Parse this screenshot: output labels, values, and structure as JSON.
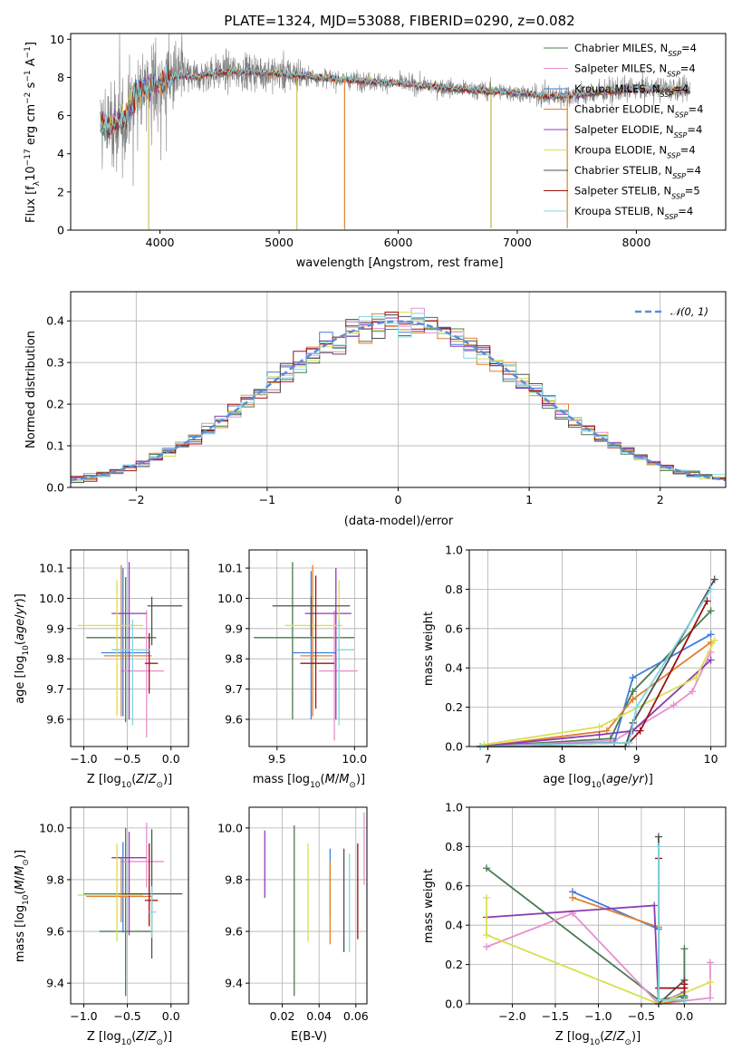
{
  "chart_data": [
    {
      "id": "spectrum",
      "type": "line",
      "title": "PLATE=1324, MJD=53088, FIBERID=0290, z=0.082",
      "xlabel": "wavelength [Angstrom, rest frame]",
      "ylabel": "Flux [f$_\\lambda$10$^{-17}$ erg cm$^{-2}$ s$^{-1}$ A$^{-1}$]",
      "xlim": [
        3250,
        8750
      ],
      "ylim": [
        0,
        10.3
      ],
      "xticks": [
        4000,
        5000,
        6000,
        7000,
        8000
      ],
      "yticks": [
        0,
        2,
        4,
        6,
        8,
        10
      ],
      "grid": false,
      "legend_position": "right",
      "series": [
        {
          "name": "Chabrier MILES, N$_{SSP}$=4",
          "color": "#4a7a50"
        },
        {
          "name": "Salpeter MILES, N$_{SSP}$=4",
          "color": "#e88fd0"
        },
        {
          "name": "Kroupa MILES, N$_{SSP}$=4",
          "color": "#3f7fd8"
        },
        {
          "name": "Chabrier ELODIE, N$_{SSP}$=4",
          "color": "#e08030"
        },
        {
          "name": "Salpeter ELODIE, N$_{SSP}$=4",
          "color": "#8c3cb4"
        },
        {
          "name": "Kroupa ELODIE, N$_{SSP}$=4",
          "color": "#d8e050"
        },
        {
          "name": "Chabrier STELIB, N$_{SSP}$=4",
          "color": "#505050"
        },
        {
          "name": "Salpeter STELIB, N$_{SSP}$=5",
          "color": "#a01010"
        },
        {
          "name": "Kroupa STELIB, N$_{SSP}$=4",
          "color": "#80d8e0"
        }
      ],
      "data_color": "#808080",
      "continuum": {
        "wavelength": [
          3500,
          3600,
          3700,
          3800,
          3900,
          4000,
          4100,
          4200,
          4300,
          4400,
          4600,
          4800,
          5000,
          5200,
          5500,
          6000,
          6500,
          7000,
          7300,
          7500,
          8000,
          8300,
          8450
        ],
        "flux": [
          5.5,
          5.4,
          5.8,
          7.2,
          7.5,
          7.6,
          8.0,
          8.1,
          8.0,
          8.2,
          8.3,
          8.3,
          8.2,
          8.1,
          7.9,
          7.7,
          7.4,
          7.2,
          7.0,
          7.1,
          7.4,
          7.4,
          7.3
        ]
      },
      "spikes": [
        {
          "wavelength": 3905,
          "flux": 0
        },
        {
          "wavelength": 5150,
          "flux": 0
        },
        {
          "wavelength": 5550,
          "flux": 0
        },
        {
          "wavelength": 6780,
          "flux": 0.3
        },
        {
          "wavelength": 7420,
          "flux": 0.5
        }
      ]
    },
    {
      "id": "residuals",
      "type": "line",
      "xlabel": "(data-model)/error",
      "ylabel": "Normed distribution",
      "xlim": [
        -2.5,
        2.5
      ],
      "ylim": [
        0,
        0.47
      ],
      "xticks": [
        -2,
        -1,
        0,
        1,
        2
      ],
      "yticks": [
        0.0,
        0.1,
        0.2,
        0.3,
        0.4
      ],
      "grid": true,
      "legend": [
        {
          "name": "$\\mathcal{N}(0,1)$",
          "color": "#5b8cd8",
          "style": "dashed"
        }
      ],
      "legend_position": "top-right",
      "bins": 50,
      "hist_range": [
        -2.5,
        2.5
      ]
    },
    {
      "id": "age-vs-Z",
      "type": "scatter",
      "xlabel": "Z [log$_{10}$(Z/Z$_\\odot$)]",
      "ylabel": "age  [log$_{10}$(age/yr)]",
      "xlim": [
        -1.15,
        0.2
      ],
      "ylim": [
        9.51,
        10.16
      ],
      "xticks": [
        -1.0,
        -0.5,
        0.0
      ],
      "yticks": [
        9.6,
        9.7,
        9.8,
        9.9,
        10.0,
        10.1
      ],
      "grid": true,
      "points": [
        {
          "color": "#4a7a50",
          "x": -0.52,
          "xerr": [
            0.45,
            0.35
          ],
          "y": 9.87,
          "yerr": [
            0.28,
            0.2
          ]
        },
        {
          "color": "#e88fd0",
          "x": -0.28,
          "xerr": [
            0.3,
            0.2
          ],
          "y": 9.76,
          "yerr": [
            0.22,
            0.2
          ]
        },
        {
          "color": "#3f7fd8",
          "x": -0.55,
          "xerr": [
            0.25,
            0.3
          ],
          "y": 9.82,
          "yerr": [
            0.21,
            0.28
          ]
        },
        {
          "color": "#e08030",
          "x": -0.57,
          "xerr": [
            0.2,
            0.35
          ],
          "y": 9.81,
          "yerr": [
            0.2,
            0.3
          ]
        },
        {
          "color": "#8c3cb4",
          "x": -0.48,
          "xerr": [
            0.2,
            0.2
          ],
          "y": 9.95,
          "yerr": [
            0.35,
            0.17
          ]
        },
        {
          "color": "#d8e050",
          "x": -0.62,
          "xerr": [
            0.45,
            0.3
          ],
          "y": 9.91,
          "yerr": [
            0.3,
            0.15
          ]
        },
        {
          "color": "#505050",
          "x": -0.22,
          "xerr": [
            0.05,
            0.35
          ],
          "y": 9.975,
          "yerr": [
            0.13,
            0.03
          ]
        },
        {
          "color": "#a01010",
          "x": -0.25,
          "xerr": [
            0.05,
            0.1
          ],
          "y": 9.785,
          "yerr": [
            0.1,
            0.1
          ]
        },
        {
          "color": "#80d8e0",
          "x": -0.44,
          "xerr": [
            0.24,
            0.2
          ],
          "y": 9.83,
          "yerr": [
            0.25,
            0.1
          ]
        }
      ]
    },
    {
      "id": "age-vs-mass",
      "type": "scatter",
      "xlabel": "mass [log$_{10}$(M/M$_\\odot$)]",
      "ylabel": "",
      "xlim": [
        9.32,
        10.08
      ],
      "ylim": [
        9.51,
        10.16
      ],
      "xticks": [
        9.5,
        10.0
      ],
      "yticks": [
        9.6,
        9.7,
        9.8,
        9.9,
        10.0,
        10.1
      ],
      "grid": true,
      "points": [
        {
          "color": "#4a7a50",
          "x": 9.6,
          "xerr": [
            0.25,
            0.4
          ],
          "y": 9.87,
          "yerr": [
            0.27,
            0.25
          ]
        },
        {
          "color": "#e88fd0",
          "x": 9.87,
          "xerr": [
            0.1,
            0.15
          ],
          "y": 9.76,
          "yerr": [
            0.23,
            0.2
          ]
        },
        {
          "color": "#3f7fd8",
          "x": 9.72,
          "xerr": [
            0.12,
            0.16
          ],
          "y": 9.82,
          "yerr": [
            0.22,
            0.27
          ]
        },
        {
          "color": "#e08030",
          "x": 9.73,
          "xerr": [
            0.08,
            0.13
          ],
          "y": 9.81,
          "yerr": [
            0.2,
            0.3
          ]
        },
        {
          "color": "#8c3cb4",
          "x": 9.88,
          "xerr": [
            0.2,
            0.1
          ],
          "y": 9.95,
          "yerr": [
            0.35,
            0.15
          ]
        },
        {
          "color": "#d8e050",
          "x": 9.9,
          "xerr": [
            0.35,
            0.02
          ],
          "y": 9.91,
          "yerr": [
            0.3,
            0.15
          ]
        },
        {
          "color": "#505050",
          "x": 9.72,
          "xerr": [
            0.25,
            0.25
          ],
          "y": 9.975,
          "yerr": [
            0.1,
            0.03
          ]
        },
        {
          "color": "#a01010",
          "x": 9.75,
          "xerr": [
            0.1,
            0.12
          ],
          "y": 9.785,
          "yerr": [
            0.15,
            0.29
          ]
        },
        {
          "color": "#80d8e0",
          "x": 9.9,
          "xerr": [
            0.02,
            0.1
          ],
          "y": 9.83,
          "yerr": [
            0.25,
            0.1
          ]
        }
      ]
    },
    {
      "id": "mass-weight-vs-age",
      "type": "line",
      "xlabel": "age  [log$_{10}$(age/yr)]",
      "ylabel": "mass weight",
      "xlim": [
        6.75,
        10.2
      ],
      "ylim": [
        0,
        1.0
      ],
      "xticks": [
        7,
        8,
        9,
        10
      ],
      "yticks": [
        0.0,
        0.2,
        0.4,
        0.6,
        0.8,
        1.0
      ],
      "grid": true,
      "series": [
        {
          "color": "#4a7a50",
          "x": [
            6.9,
            8.65,
            8.95,
            10.0
          ],
          "y": [
            0.0,
            0.04,
            0.28,
            0.69
          ]
        },
        {
          "color": "#e88fd0",
          "x": [
            6.9,
            8.7,
            9.5,
            9.75,
            10.0
          ],
          "y": [
            0.0,
            0.03,
            0.21,
            0.28,
            0.48
          ]
        },
        {
          "color": "#3f7fd8",
          "x": [
            6.9,
            8.7,
            8.95,
            10.0
          ],
          "y": [
            0.0,
            0.02,
            0.35,
            0.57
          ]
        },
        {
          "color": "#e08030",
          "x": [
            6.9,
            8.6,
            8.95,
            10.0
          ],
          "y": [
            0.0,
            0.08,
            0.24,
            0.53
          ]
        },
        {
          "color": "#8c3cb4",
          "x": [
            6.9,
            8.5,
            8.95,
            10.0
          ],
          "y": [
            0.0,
            0.06,
            0.08,
            0.44
          ]
        },
        {
          "color": "#d8e050",
          "x": [
            6.95,
            8.5,
            9.8,
            10.05
          ],
          "y": [
            0.01,
            0.1,
            0.35,
            0.54
          ]
        },
        {
          "color": "#505050",
          "x": [
            6.9,
            8.85,
            8.95,
            10.05
          ],
          "y": [
            0.0,
            0.0,
            0.12,
            0.85
          ]
        },
        {
          "color": "#a01010",
          "x": [
            6.9,
            8.9,
            9.05,
            9.95
          ],
          "y": [
            0.0,
            0.02,
            0.08,
            0.74
          ]
        },
        {
          "color": "#80d8e0",
          "x": [
            6.9,
            8.9,
            9.0,
            10.0
          ],
          "y": [
            0.0,
            0.02,
            0.2,
            0.8
          ]
        }
      ]
    },
    {
      "id": "mass-vs-Z",
      "type": "scatter",
      "xlabel": "Z [log$_{10}$(Z/Z$_\\odot$)]",
      "ylabel": "mass [log$_{10}$(M/M$_\\odot$)]",
      "xlim": [
        -1.15,
        0.2
      ],
      "ylim": [
        9.32,
        10.08
      ],
      "xticks": [
        -1.0,
        -0.5,
        0.0
      ],
      "yticks": [
        9.4,
        9.6,
        9.8,
        10.0
      ],
      "grid": true,
      "points": [
        {
          "color": "#4a7a50",
          "x": -0.52,
          "xerr": [
            0.3,
            0.3
          ],
          "y": 9.6,
          "yerr": [
            0.25,
            0.4
          ]
        },
        {
          "color": "#e88fd0",
          "x": -0.28,
          "xerr": [
            0.3,
            0.2
          ],
          "y": 9.87,
          "yerr": [
            0.1,
            0.15
          ]
        },
        {
          "color": "#3f7fd8",
          "x": -0.55,
          "xerr": [
            0.45,
            0.35
          ],
          "y": 9.745,
          "yerr": [
            0.15,
            0.2
          ]
        },
        {
          "color": "#e08030",
          "x": -0.57,
          "xerr": [
            0.4,
            0.35
          ],
          "y": 9.735,
          "yerr": [
            0.1,
            0.15
          ]
        },
        {
          "color": "#8c3cb4",
          "x": -0.48,
          "xerr": [
            0.2,
            0.2
          ],
          "y": 9.885,
          "yerr": [
            0.3,
            0.1
          ]
        },
        {
          "color": "#d8e050",
          "x": -0.62,
          "xerr": [
            0.45,
            0.3
          ],
          "y": 9.74,
          "yerr": [
            0.18,
            0.2
          ]
        },
        {
          "color": "#505050",
          "x": -0.22,
          "xerr": [
            0.35,
            0.35
          ],
          "y": 9.745,
          "yerr": [
            0.25,
            0.25
          ]
        },
        {
          "color": "#a01010",
          "x": -0.25,
          "xerr": [
            0.05,
            0.1
          ],
          "y": 9.72,
          "yerr": [
            0.1,
            0.22
          ]
        },
        {
          "color": "#80d8e0",
          "x": -0.22,
          "xerr": [
            0.05,
            0.05
          ],
          "y": 9.675,
          "yerr": [
            0.1,
            0.1
          ]
        }
      ]
    },
    {
      "id": "mass-vs-ebv",
      "type": "scatter",
      "xlabel": "E(B-V)",
      "ylabel": "",
      "xlim": [
        0.002,
        0.066
      ],
      "ylim": [
        9.32,
        10.08
      ],
      "xticks": [
        0.02,
        0.04,
        0.06
      ],
      "yticks": [
        9.4,
        9.6,
        9.8,
        10.0
      ],
      "grid": true,
      "points": [
        {
          "color": "#8c3cb4",
          "x": 0.0105,
          "ymin": 9.73,
          "ymax": 9.99
        },
        {
          "color": "#4a7a50",
          "x": 0.0265,
          "ymin": 9.35,
          "ymax": 10.01
        },
        {
          "color": "#d8e050",
          "x": 0.034,
          "ymin": 9.56,
          "ymax": 9.94
        },
        {
          "color": "#3f7fd8",
          "x": 0.046,
          "ymin": 9.66,
          "ymax": 9.92
        },
        {
          "color": "#e08030",
          "x": 0.046,
          "ymin": 9.55,
          "ymax": 9.87
        },
        {
          "color": "#505050",
          "x": 0.0535,
          "ymin": 9.52,
          "ymax": 9.92
        },
        {
          "color": "#80d8e0",
          "x": 0.0565,
          "ymin": 9.52,
          "ymax": 9.9
        },
        {
          "color": "#a01010",
          "x": 0.061,
          "ymin": 9.57,
          "ymax": 9.94
        },
        {
          "color": "#e88fd0",
          "x": 0.0645,
          "ymin": 9.78,
          "ymax": 10.06
        }
      ]
    },
    {
      "id": "mass-weight-vs-Z",
      "type": "line",
      "xlabel": "Z [log$_{10}$(Z/Z$_\\odot$)]",
      "ylabel": "mass weight",
      "xlim": [
        -2.5,
        0.48
      ],
      "ylim": [
        0,
        1.0
      ],
      "xticks": [
        -2.0,
        -1.5,
        -1.0,
        -0.5,
        0.0
      ],
      "yticks": [
        0.0,
        0.2,
        0.4,
        0.6,
        0.8,
        1.0
      ],
      "grid": true,
      "series": [
        {
          "color": "#4a7a50",
          "x": [
            -2.3,
            -0.3,
            0.0,
            0.0
          ],
          "y": [
            0.69,
            0.02,
            0.04,
            0.28
          ]
        },
        {
          "color": "#e88fd0",
          "x": [
            -2.3,
            -1.3,
            -0.3,
            0.3,
            0.3
          ],
          "y": [
            0.29,
            0.46,
            0.0,
            0.03,
            0.21
          ]
        },
        {
          "color": "#3f7fd8",
          "x": [
            -1.3,
            -0.3,
            -0.3,
            0.0
          ],
          "y": [
            0.57,
            0.38,
            0.02,
            0.02
          ]
        },
        {
          "color": "#e08030",
          "x": [
            -1.3,
            -0.3,
            -0.3,
            0.0
          ],
          "y": [
            0.54,
            0.39,
            0.0,
            0.02
          ]
        },
        {
          "color": "#8c3cb4",
          "x": [
            -2.3,
            -0.35,
            -0.3,
            0.0
          ],
          "y": [
            0.44,
            0.5,
            0.0,
            0.06
          ]
        },
        {
          "color": "#d8e050",
          "x": [
            -2.3,
            -2.3,
            -0.3,
            0.3
          ],
          "y": [
            0.54,
            0.35,
            0.0,
            0.11
          ]
        },
        {
          "color": "#505050",
          "x": [
            -0.3,
            -0.3,
            0.0,
            0.0
          ],
          "y": [
            0.85,
            0.0,
            0.12,
            0.03
          ]
        },
        {
          "color": "#a01010",
          "x": [
            -0.3,
            -0.3,
            0.0,
            0.0
          ],
          "y": [
            0.74,
            0.08,
            0.08,
            0.1
          ]
        },
        {
          "color": "#80d8e0",
          "x": [
            -0.3,
            -0.3,
            0.0
          ],
          "y": [
            0.8,
            0.02,
            0.02
          ]
        }
      ]
    }
  ]
}
